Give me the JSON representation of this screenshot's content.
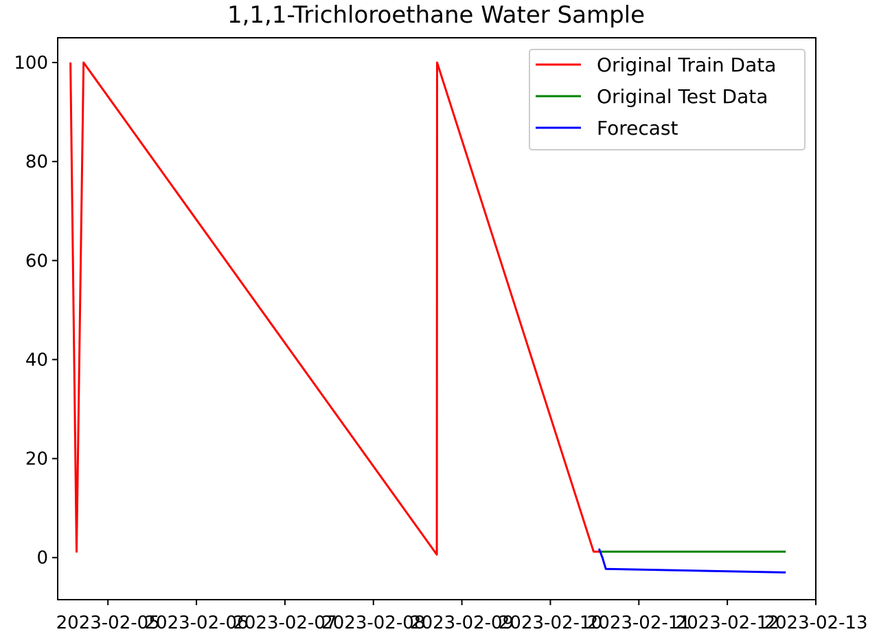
{
  "chart_data": {
    "type": "line",
    "title": "1,1,1-Trichloroethane Water Sample",
    "xlabel": "",
    "ylabel": "",
    "x_tick_labels": [
      "2023-02-05",
      "2023-02-06",
      "2023-02-07",
      "2023-02-08",
      "2023-02-09",
      "2023-02-10",
      "2023-02-11",
      "2023-02-12",
      "2023-02-13"
    ],
    "y_ticks": [
      0,
      20,
      40,
      60,
      80,
      100
    ],
    "y_tick_labels": [
      "0",
      "20",
      "40",
      "60",
      "80",
      "100"
    ],
    "xlim": [
      "2023-02-04T10:22",
      "2023-02-13T00:00"
    ],
    "ylim": [
      -8.5,
      105
    ],
    "grid": false,
    "legend_position": "top-right",
    "series": [
      {
        "name": "Original Train Data",
        "color": "#ff0000",
        "points": [
          {
            "x": "2023-02-04T13:50",
            "y": 100
          },
          {
            "x": "2023-02-04T15:29",
            "y": 1.2
          },
          {
            "x": "2023-02-04T17:23",
            "y": 100
          },
          {
            "x": "2023-02-08T17:12",
            "y": 0.6
          },
          {
            "x": "2023-02-08T17:17",
            "y": 100
          },
          {
            "x": "2023-02-10T11:43",
            "y": 1.2
          },
          {
            "x": "2023-02-10T13:12",
            "y": 1.2
          }
        ]
      },
      {
        "name": "Original Test Data",
        "color": "#008000",
        "points": [
          {
            "x": "2023-02-10T13:12",
            "y": 1.2
          },
          {
            "x": "2023-02-12T15:50",
            "y": 1.2
          }
        ]
      },
      {
        "name": "Forecast",
        "color": "#0000ff",
        "points": [
          {
            "x": "2023-02-10T13:12",
            "y": 1.8
          },
          {
            "x": "2023-02-10T14:07",
            "y": 0.0
          },
          {
            "x": "2023-02-10T15:02",
            "y": -2.3
          },
          {
            "x": "2023-02-12T15:50",
            "y": -3.0
          }
        ]
      }
    ]
  }
}
